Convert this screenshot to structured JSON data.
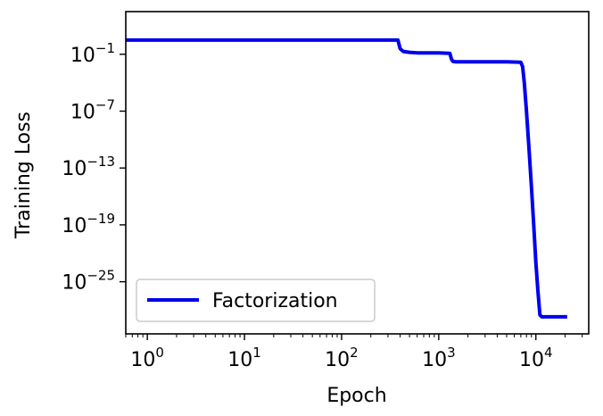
{
  "chart_data": {
    "type": "line",
    "title": "",
    "xlabel": "Epoch",
    "ylabel": "Training Loss",
    "xscale": "log",
    "yscale": "log",
    "xlim": [
      0.6,
      35000
    ],
    "ylim_exponent": [
      -30.5,
      3.5
    ],
    "grid": false,
    "legend_position": "lower-left",
    "x_ticks": [
      {
        "base": "10",
        "exp": "0",
        "value": 1
      },
      {
        "base": "10",
        "exp": "1",
        "value": 10
      },
      {
        "base": "10",
        "exp": "2",
        "value": 100
      },
      {
        "base": "10",
        "exp": "3",
        "value": 1000
      },
      {
        "base": "10",
        "exp": "4",
        "value": 10000
      }
    ],
    "y_ticks": [
      {
        "base": "10",
        "exp": "−1",
        "value": -1
      },
      {
        "base": "10",
        "exp": "−7",
        "value": -7
      },
      {
        "base": "10",
        "exp": "−13",
        "value": -13
      },
      {
        "base": "10",
        "exp": "−19",
        "value": -19
      },
      {
        "base": "10",
        "exp": "−25",
        "value": -25
      }
    ],
    "series": [
      {
        "name": "Factorization",
        "color": "#0000ee",
        "x": [
          0.6,
          100,
          380,
          400,
          430,
          500,
          600,
          800,
          1000,
          1300,
          1350,
          1400,
          1500,
          2000,
          3000,
          5000,
          7000,
          7300,
          7600,
          8000,
          8500,
          9000,
          9500,
          10000,
          10500,
          11000,
          11500,
          15000,
          21000
        ],
        "y_exponent": [
          0.5,
          0.5,
          0.5,
          -0.4,
          -0.7,
          -0.8,
          -0.85,
          -0.85,
          -0.85,
          -0.9,
          -1.5,
          -1.75,
          -1.8,
          -1.8,
          -1.8,
          -1.8,
          -1.85,
          -2.3,
          -4.0,
          -7.0,
          -11.0,
          -15.0,
          -19.0,
          -23.0,
          -26.0,
          -28.5,
          -28.7,
          -28.7,
          -28.7
        ]
      }
    ]
  }
}
